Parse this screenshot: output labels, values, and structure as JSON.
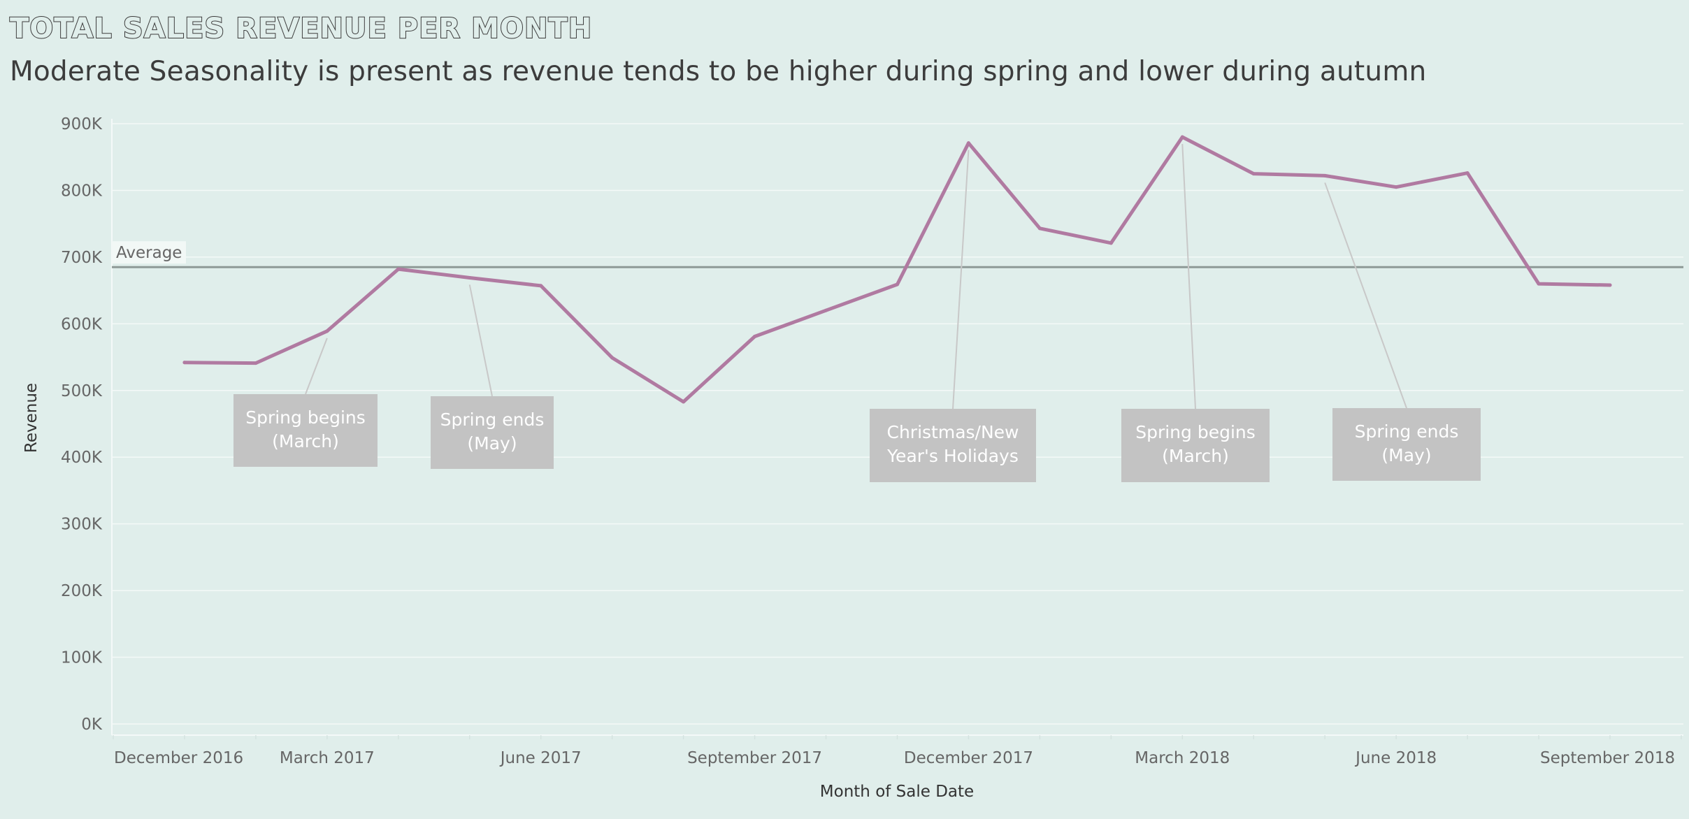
{
  "chart_data": {
    "type": "line",
    "title": "TOTAL SALES REVENUE PER MONTH",
    "subtitle": "Moderate Seasonality is present as revenue tends to be higher during spring and lower during autumn",
    "xlabel": "Month of Sale Date",
    "ylabel": "Revenue",
    "ylim": [
      0,
      900000
    ],
    "yticks": [
      {
        "value": 0,
        "label": "0K"
      },
      {
        "value": 100000,
        "label": "100K"
      },
      {
        "value": 200000,
        "label": "200K"
      },
      {
        "value": 300000,
        "label": "300K"
      },
      {
        "value": 400000,
        "label": "400K"
      },
      {
        "value": 500000,
        "label": "500K"
      },
      {
        "value": 600000,
        "label": "600K"
      },
      {
        "value": 700000,
        "label": "700K"
      },
      {
        "value": 800000,
        "label": "800K"
      },
      {
        "value": 900000,
        "label": "900K"
      }
    ],
    "xticks": [
      {
        "label": "December 2016",
        "month": "2016-12"
      },
      {
        "label": "March 2017",
        "month": "2017-03"
      },
      {
        "label": "June 2017",
        "month": "2017-06"
      },
      {
        "label": "September 2017",
        "month": "2017-09"
      },
      {
        "label": "December 2017",
        "month": "2017-12"
      },
      {
        "label": "March 2018",
        "month": "2018-03"
      },
      {
        "label": "June 2018",
        "month": "2018-06"
      },
      {
        "label": "September 2018",
        "month": "2018-09"
      }
    ],
    "grid": true,
    "x": [
      "2017-01",
      "2017-02",
      "2017-03",
      "2017-04",
      "2017-05",
      "2017-06",
      "2017-07",
      "2017-08",
      "2017-09",
      "2017-10",
      "2017-11",
      "2017-12",
      "2018-01",
      "2018-02",
      "2018-03",
      "2018-04",
      "2018-05",
      "2018-06",
      "2018-07",
      "2018-08",
      "2018-09"
    ],
    "series": [
      {
        "values": [
          542000,
          541000,
          589000,
          682000,
          669000,
          657000,
          549000,
          483000,
          581000,
          620000,
          659000,
          871000,
          743000,
          721000,
          880000,
          825000,
          822000,
          805000,
          826000,
          660000,
          658000
        ],
        "color": "#b07aa1"
      }
    ],
    "reference_line": {
      "label": "Average",
      "value": 685000,
      "color": "#8e9a97"
    },
    "annotations": [
      {
        "text_lines": [
          "Spring begins",
          "(March)"
        ],
        "month": "2017-03",
        "value": 589000
      },
      {
        "text_lines": [
          "Spring ends",
          "(May)"
        ],
        "month": "2017-05",
        "value": 669000
      },
      {
        "text_lines": [
          "Christmas/New",
          "Year's Holidays"
        ],
        "month": "2017-12",
        "value": 871000
      },
      {
        "text_lines": [
          "Spring begins",
          "(March)"
        ],
        "month": "2018-03",
        "value": 880000
      },
      {
        "text_lines": [
          "Spring ends",
          "(May)"
        ],
        "month": "2018-05",
        "value": 822000
      }
    ]
  }
}
